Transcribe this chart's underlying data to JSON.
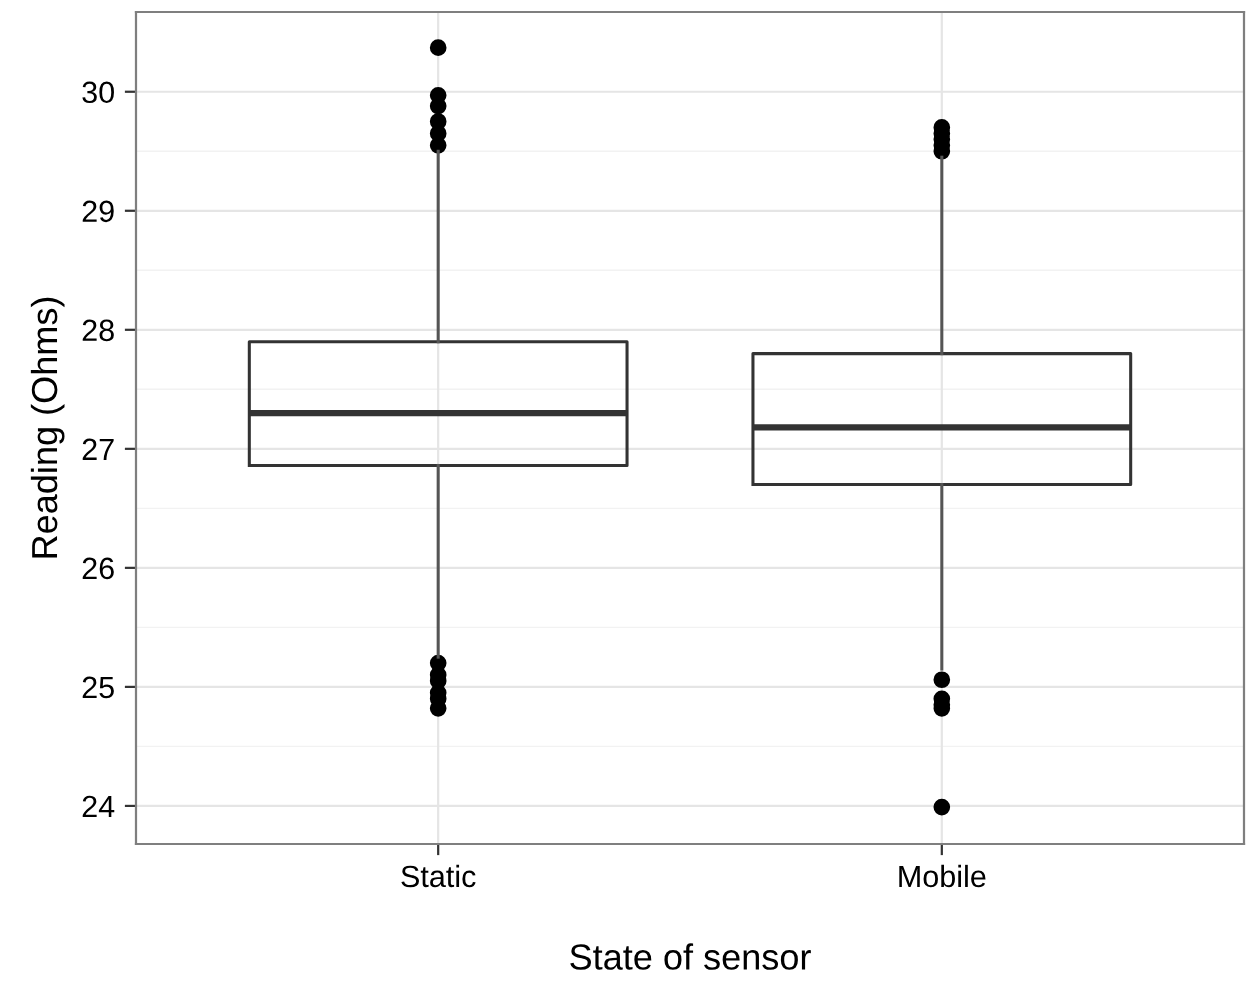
{
  "chart_data": {
    "type": "box",
    "xlabel": "State of sensor",
    "ylabel": "Reading (Ohms)",
    "categories": [
      "Static",
      "Mobile"
    ],
    "boxes": [
      {
        "low": 25.25,
        "q1": 26.86,
        "median": 27.3,
        "q3": 27.9,
        "high": 29.5,
        "outliers": [
          30.37,
          29.97,
          29.88,
          29.75,
          29.65,
          29.55,
          25.2,
          25.1,
          25.05,
          24.95,
          24.9,
          24.82
        ]
      },
      {
        "low": 25.15,
        "q1": 26.7,
        "median": 27.18,
        "q3": 27.8,
        "high": 29.45,
        "outliers": [
          29.7,
          29.65,
          29.6,
          29.55,
          29.5,
          25.06,
          24.9,
          24.85,
          24.82,
          23.99
        ]
      }
    ],
    "ylim": [
      23.68,
      30.67
    ],
    "yticks": [
      24,
      25,
      26,
      27,
      28,
      29,
      30
    ],
    "grid": true,
    "color": "#333333"
  }
}
